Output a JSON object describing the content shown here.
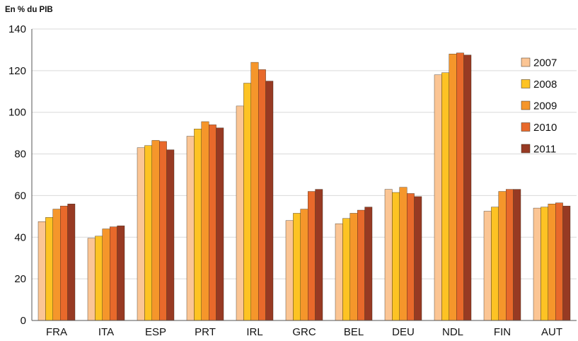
{
  "chart_data": {
    "type": "bar",
    "unit_label": "En % du PIB",
    "categories": [
      "FRA",
      "ITA",
      "ESP",
      "PRT",
      "IRL",
      "GRC",
      "BEL",
      "DEU",
      "NDL",
      "FIN",
      "AUT"
    ],
    "series": [
      {
        "name": "2007",
        "color": "#fbc594",
        "values": [
          47.5,
          39.5,
          83,
          88.5,
          103,
          48,
          46.5,
          63,
          118,
          52.5,
          54
        ]
      },
      {
        "name": "2008",
        "color": "#fdc324",
        "values": [
          49.5,
          40.5,
          84,
          92,
          114,
          51.5,
          49,
          61.5,
          119,
          54.5,
          54.5
        ]
      },
      {
        "name": "2009",
        "color": "#f5962b",
        "values": [
          53.5,
          44,
          86.5,
          95.5,
          124,
          53.5,
          51.5,
          64,
          128,
          62,
          56
        ]
      },
      {
        "name": "2010",
        "color": "#e8692b",
        "values": [
          55,
          45,
          86,
          94,
          120.5,
          62,
          53,
          61,
          128.5,
          63,
          56.5
        ]
      },
      {
        "name": "2011",
        "color": "#973a23",
        "values": [
          56,
          45.5,
          82,
          92.5,
          115,
          63,
          54.5,
          59.5,
          127.5,
          63,
          55
        ]
      }
    ],
    "ylim": [
      0,
      140
    ],
    "yticks": [
      "0",
      "20",
      "40",
      "60",
      "80",
      "100",
      "120",
      "140"
    ],
    "grid": true,
    "legend_position": "right"
  }
}
